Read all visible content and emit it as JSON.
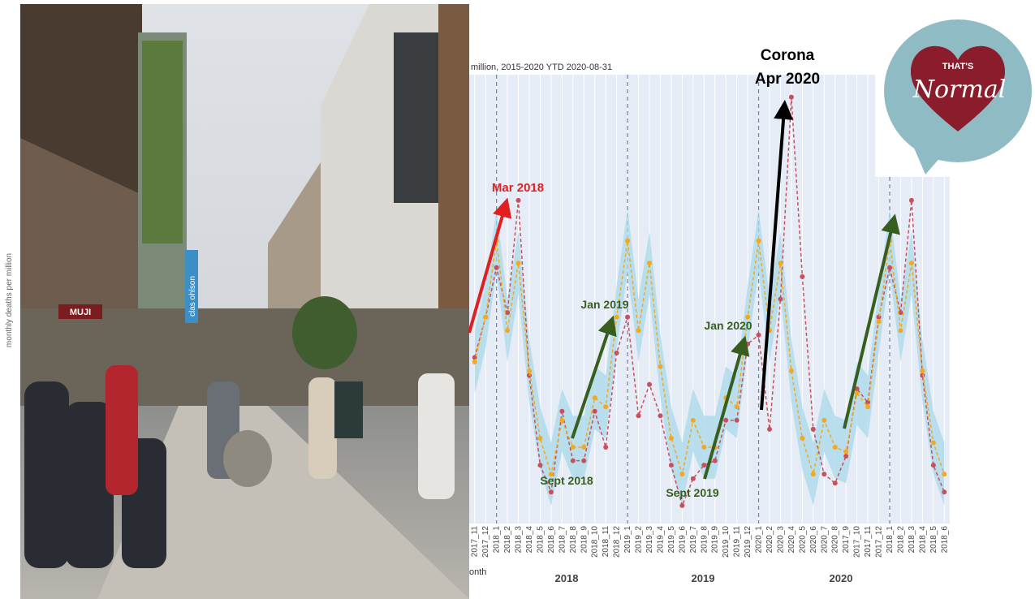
{
  "chart_data": {
    "type": "line",
    "title": "million, 2015-2020 YTD 2020-08-31",
    "y_label": "monthly deaths per million",
    "x_label": "onth",
    "categories": [
      "2017_11",
      "2017_12",
      "2018_1",
      "2018_2",
      "2018_3",
      "2018_4",
      "2018_5",
      "2018_6",
      "2018_7",
      "2018_8",
      "2018_9",
      "2018_10",
      "2018_11",
      "2018_12",
      "2019_1",
      "2019_2",
      "2019_3",
      "2019_4",
      "2019_5",
      "2019_6",
      "2019_7",
      "2019_8",
      "2019_9",
      "2019_10",
      "2019_11",
      "2019_12",
      "2020_1",
      "2020_2",
      "2020_3",
      "2020_4",
      "2020_5",
      "2020_6",
      "2020_7",
      "2020_8",
      "2017_9",
      "2017_10",
      "2017_11",
      "2017_12",
      "2018_1",
      "2018_2",
      "2018_3",
      "2018_4",
      "2018_5",
      "2018_6"
    ],
    "series": [
      {
        "color": "#c94f5c",
        "values": [
          37,
          46,
          57,
          47,
          72,
          33,
          13,
          7,
          25,
          14,
          14,
          25,
          17,
          38,
          46,
          24,
          31,
          24,
          13,
          4,
          10,
          13,
          14,
          23,
          23,
          40,
          42,
          21,
          50,
          95,
          55,
          21,
          11,
          9,
          15,
          30,
          27,
          46,
          57,
          47,
          72,
          33,
          13,
          7
        ]
      },
      {
        "color": "#f2a91e",
        "values": [
          36,
          46,
          63,
          43,
          58,
          34,
          19,
          11,
          23,
          17,
          17,
          28,
          26,
          46,
          63,
          43,
          58,
          35,
          19,
          11,
          23,
          17,
          17,
          28,
          26,
          46,
          63,
          43,
          58,
          34,
          19,
          11,
          23,
          17,
          16,
          29,
          26,
          45,
          63,
          43,
          58,
          34,
          18,
          11
        ]
      }
    ],
    "band_color": "#a8d8ea",
    "band_upper": [
      43,
      53,
      70,
      50,
      65,
      41,
      26,
      18,
      30,
      24,
      24,
      35,
      33,
      53,
      70,
      50,
      65,
      42,
      26,
      18,
      30,
      24,
      24,
      35,
      33,
      53,
      70,
      50,
      65,
      41,
      26,
      18,
      30,
      24,
      23,
      36,
      33,
      52,
      70,
      50,
      65,
      41,
      25,
      18
    ],
    "band_lower": [
      29,
      39,
      56,
      36,
      51,
      27,
      12,
      4,
      16,
      10,
      10,
      21,
      19,
      39,
      56,
      36,
      51,
      28,
      12,
      4,
      16,
      10,
      10,
      21,
      19,
      39,
      56,
      36,
      51,
      27,
      12,
      4,
      16,
      10,
      9,
      22,
      19,
      38,
      56,
      36,
      51,
      27,
      11,
      4
    ],
    "ylim": [
      0,
      100
    ],
    "year_labels": [
      "2018",
      "2019",
      "2020"
    ],
    "annotations": [
      "Mar 2018",
      "Jan 2019",
      "Sept 2018",
      "Jan 2020",
      "Sept 2019",
      "Corona",
      "Apr 2020"
    ]
  },
  "photo": {
    "signs": [
      "MUJI",
      "clas ohlson"
    ]
  },
  "logo": {
    "top": "THAT'S",
    "word": "Normal"
  }
}
